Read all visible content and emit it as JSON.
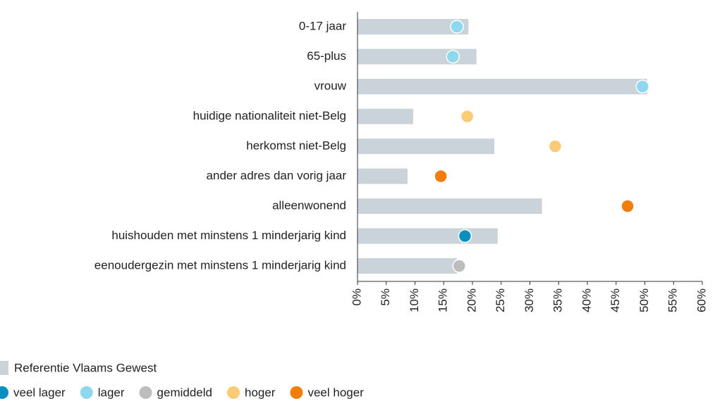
{
  "chart_data": {
    "type": "bar",
    "orientation": "horizontal",
    "categories": [
      "0-17 jaar",
      "65-plus",
      "vrouw",
      "huidige nationaliteit niet-Belg",
      "herkomst niet-Belg",
      "ander adres dan vorig jaar",
      "alleenwonend",
      "huishouden met minstens 1 minderjarig kind",
      "eenoudergezin met minstens 1 minderjarig kind"
    ],
    "series": [
      {
        "name": "Referentie Vlaams Gewest",
        "color": "#c9d3d9",
        "values": [
          19.3,
          20.7,
          50.4,
          9.7,
          23.8,
          8.7,
          32.1,
          24.4,
          17.3
        ]
      }
    ],
    "dots": {
      "values": [
        17.3,
        16.6,
        49.6,
        19.1,
        34.4,
        14.5,
        47.0,
        18.7,
        17.7
      ],
      "levels": [
        "lager",
        "lager",
        "lager",
        "hoger",
        "hoger",
        "veel hoger",
        "veel hoger",
        "veel lager",
        "gemiddeld"
      ]
    },
    "dot_legend": [
      {
        "name": "veel lager",
        "color": "#0b8fbe"
      },
      {
        "name": "lager",
        "color": "#8dd7ef"
      },
      {
        "name": "gemiddeld",
        "color": "#bdbdbd"
      },
      {
        "name": "hoger",
        "color": "#fbcb78"
      },
      {
        "name": "veel hoger",
        "color": "#f07d0c"
      }
    ],
    "xlim": [
      0,
      60
    ],
    "xticks": [
      {
        "value": 0,
        "label": "0%"
      },
      {
        "value": 5,
        "label": "5%"
      },
      {
        "value": 10,
        "label": "10%"
      },
      {
        "value": 15,
        "label": "15%"
      },
      {
        "value": 20,
        "label": "20%"
      },
      {
        "value": 25,
        "label": "25%"
      },
      {
        "value": 30,
        "label": "30%"
      },
      {
        "value": 35,
        "label": "35%"
      },
      {
        "value": 40,
        "label": "40%"
      },
      {
        "value": 45,
        "label": "45%"
      },
      {
        "value": 50,
        "label": "50%"
      },
      {
        "value": 55,
        "label": "55%"
      },
      {
        "value": 60,
        "label": "60%"
      }
    ]
  }
}
